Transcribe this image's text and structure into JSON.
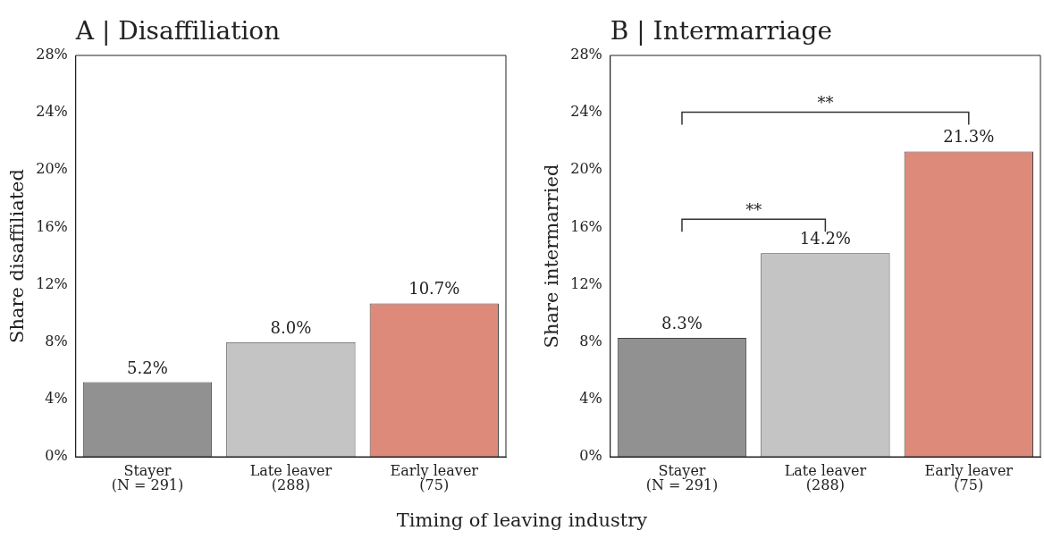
{
  "chart_data": [
    {
      "type": "bar",
      "title": "A | Disaffiliation",
      "ylabel": "Share disaffiliated",
      "xlabel": "Timing of leaving industry",
      "categories": [
        "Stayer\n(N = 291)",
        "Late leaver\n(288)",
        "Early leaver\n(75)"
      ],
      "values": [
        5.2,
        8.0,
        10.7
      ],
      "colors": [
        "#919191",
        "#c4c4c4",
        "#de8a7a"
      ],
      "value_labels": [
        "5.2%",
        "8.0%",
        "10.7%"
      ],
      "ylim": [
        0,
        28
      ],
      "yticks": [
        {
          "value": 0,
          "label": "0%"
        },
        {
          "value": 4,
          "label": "4%"
        },
        {
          "value": 8,
          "label": "8%"
        },
        {
          "value": 12,
          "label": "12%"
        },
        {
          "value": 16,
          "label": "16%"
        },
        {
          "value": 20,
          "label": "20%"
        },
        {
          "value": 24,
          "label": "24%"
        },
        {
          "value": 28,
          "label": "28%"
        }
      ],
      "grid": false,
      "legend": false
    },
    {
      "type": "bar",
      "title": "B | Intermarriage",
      "ylabel": "Share intermarried",
      "categories": [
        "Stayer\n(N = 291)",
        "Late leaver\n(288)",
        "Early leaver\n(75)"
      ],
      "values": [
        8.3,
        14.2,
        21.3
      ],
      "colors": [
        "#919191",
        "#c4c4c4",
        "#de8a7a"
      ],
      "value_labels": [
        "8.3%",
        "14.2%",
        "21.3%"
      ],
      "annotations": [
        "**",
        "**"
      ],
      "ylim": [
        0,
        28
      ],
      "yticks": [
        {
          "value": 0,
          "label": "0%"
        },
        {
          "value": 4,
          "label": "4%"
        },
        {
          "value": 8,
          "label": "8%"
        },
        {
          "value": 12,
          "label": "12%"
        },
        {
          "value": 16,
          "label": "16%"
        },
        {
          "value": 20,
          "label": "20%"
        },
        {
          "value": 24,
          "label": "24%"
        },
        {
          "value": 28,
          "label": "28%"
        }
      ],
      "grid": false,
      "legend": false
    }
  ]
}
